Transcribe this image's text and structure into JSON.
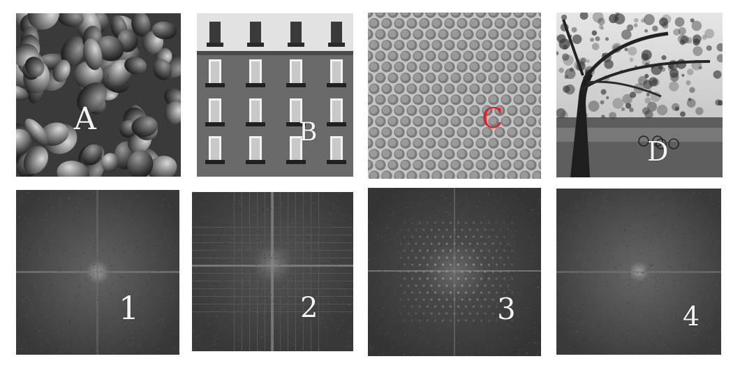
{
  "photos": [
    {
      "label": "A",
      "subject": "peppers"
    },
    {
      "label": "B",
      "subject": "building-facade"
    },
    {
      "label": "C",
      "subject": "honeycomb"
    },
    {
      "label": "D",
      "subject": "tree-park"
    }
  ],
  "spectra": [
    {
      "label": "1"
    },
    {
      "label": "2"
    },
    {
      "label": "3"
    },
    {
      "label": "4"
    }
  ],
  "colors": {
    "background": "#ffffff",
    "label_light": "#f4f4f4",
    "label_c": "#e0202a",
    "spectrum_base": "#3a3a3a"
  }
}
